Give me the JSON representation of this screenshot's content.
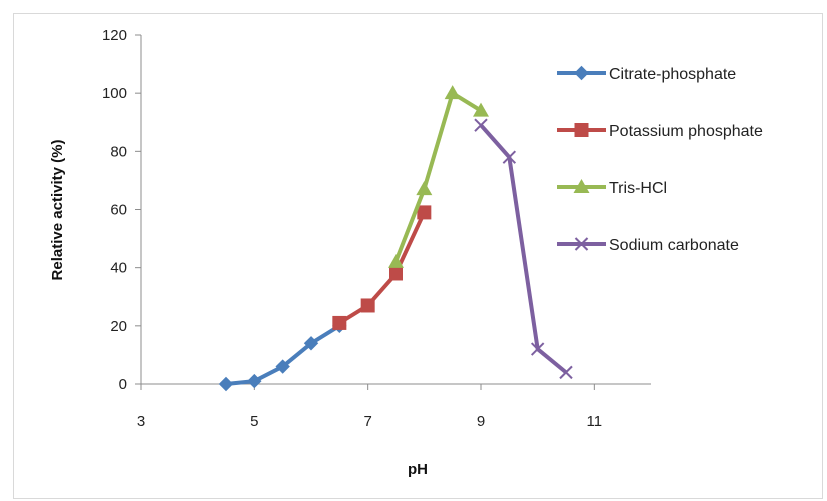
{
  "chart_data": {
    "type": "line",
    "title": "",
    "xlabel": "pH",
    "ylabel": "Relative activity (%)",
    "xlim": [
      3,
      12
    ],
    "ylim": [
      0,
      120
    ],
    "x_ticks": [
      3,
      5,
      7,
      9,
      11
    ],
    "y_ticks": [
      0,
      20,
      40,
      60,
      80,
      100,
      120
    ],
    "grid": false,
    "legend_position": "right",
    "series": [
      {
        "name": "Citrate-phosphate",
        "color": "#4a7ebb",
        "marker": "diamond",
        "points": [
          [
            4.5,
            0
          ],
          [
            5.0,
            1
          ],
          [
            5.5,
            6
          ],
          [
            6.0,
            14
          ],
          [
            6.5,
            20
          ]
        ]
      },
      {
        "name": "Potassium phosphate",
        "color": "#be4b48",
        "marker": "square",
        "points": [
          [
            6.5,
            21
          ],
          [
            7.0,
            27
          ],
          [
            7.5,
            38
          ],
          [
            8.0,
            59
          ]
        ]
      },
      {
        "name": "Tris-HCl",
        "color": "#98b954",
        "marker": "triangle",
        "points": [
          [
            7.5,
            42
          ],
          [
            8.0,
            67
          ],
          [
            8.5,
            100
          ],
          [
            9.0,
            94
          ]
        ]
      },
      {
        "name": "Sodium carbonate",
        "color": "#7d60a0",
        "marker": "x",
        "points": [
          [
            9.0,
            89
          ],
          [
            9.5,
            78
          ],
          [
            10.0,
            12
          ],
          [
            10.5,
            4
          ]
        ]
      }
    ]
  }
}
